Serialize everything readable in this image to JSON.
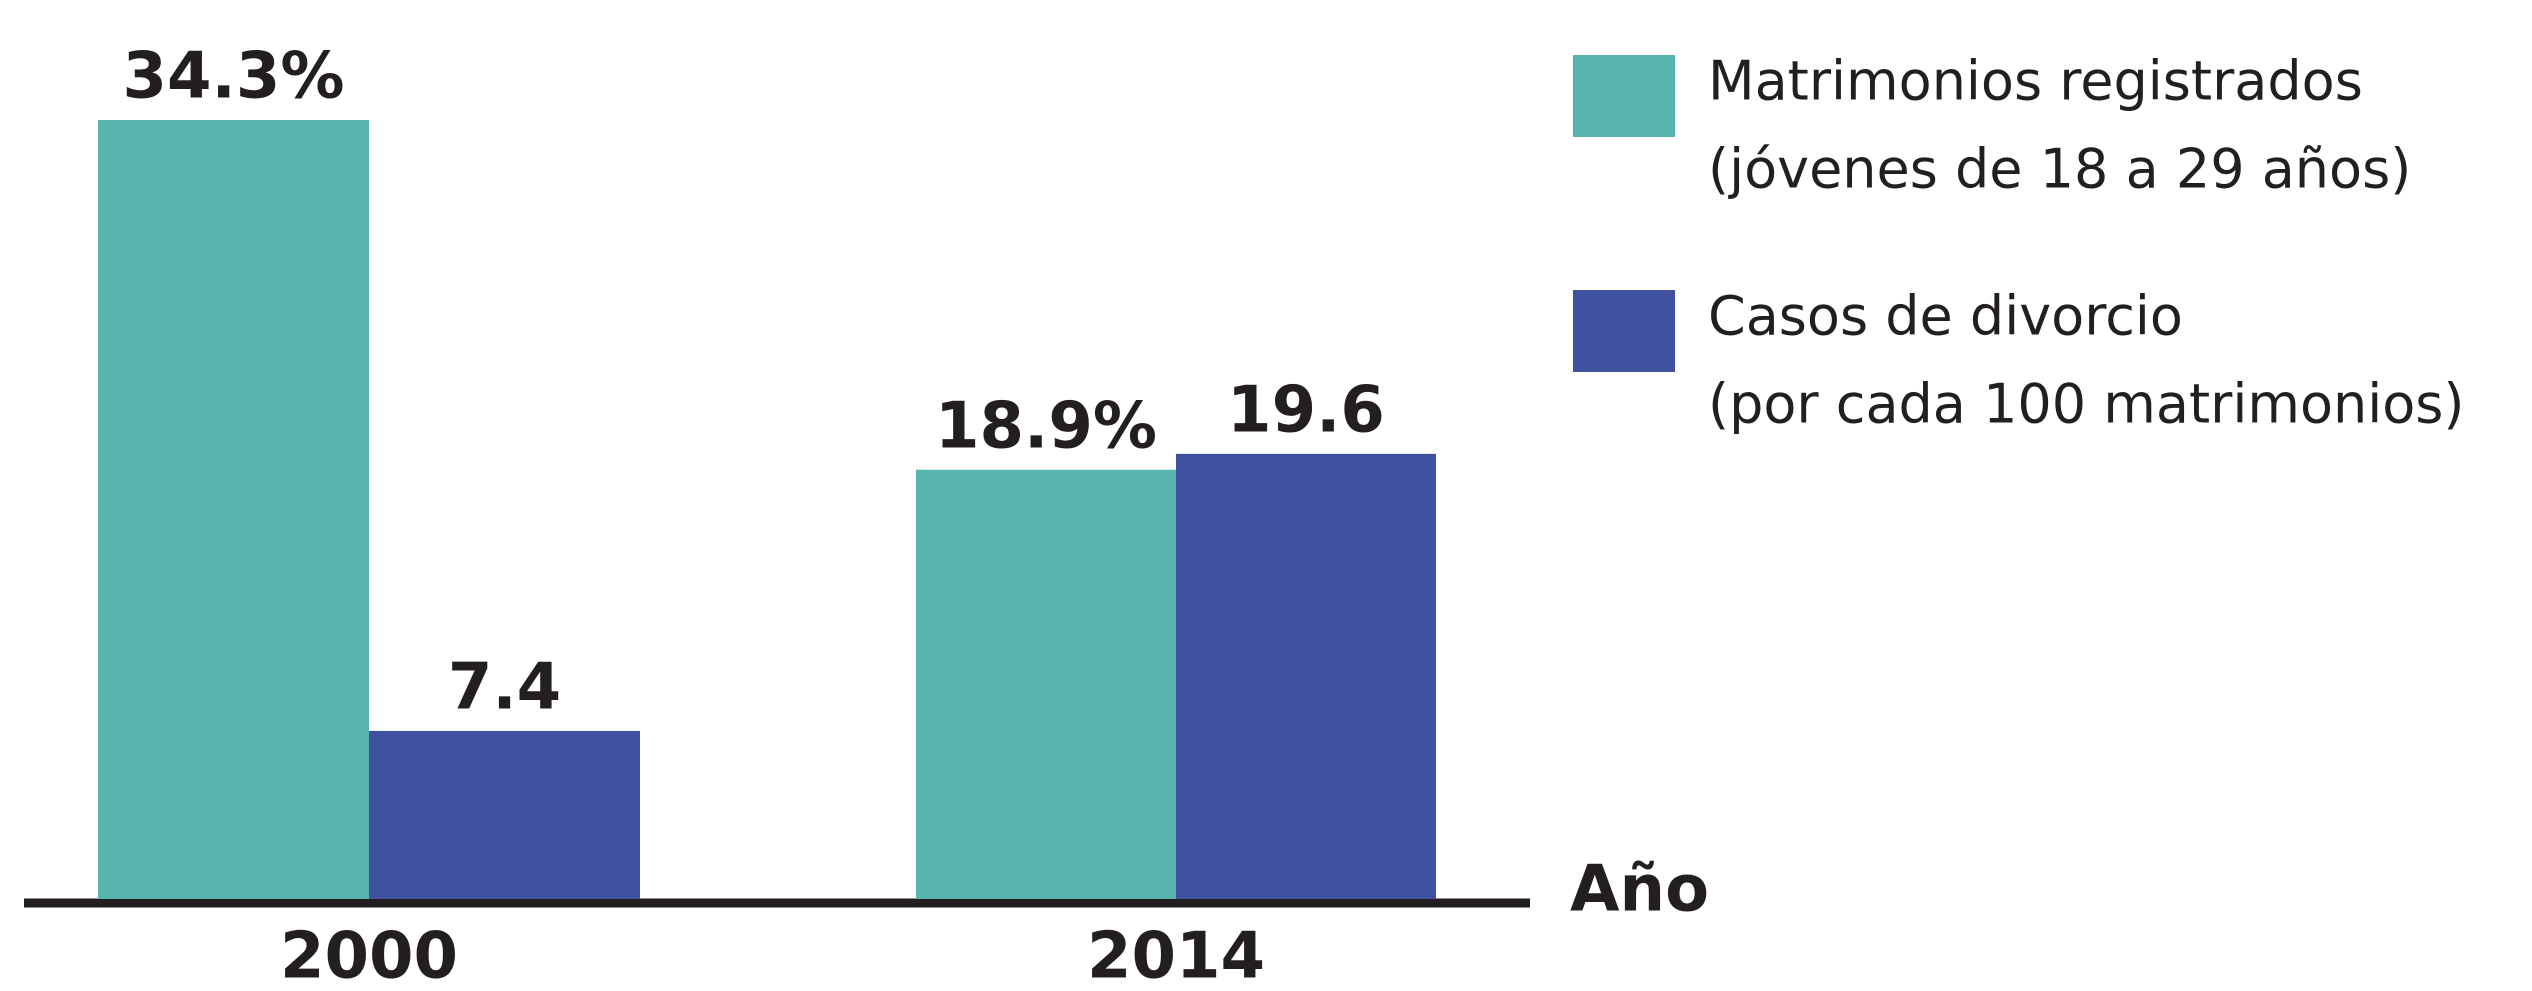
{
  "chart_data": {
    "type": "bar",
    "categories": [
      "2000",
      "2014"
    ],
    "x_label": "Año",
    "series": [
      {
        "name": "Matrimonios registrados",
        "description": "(jóvenes de 18 a 29 años)",
        "color": "#58b5ad",
        "values": [
          34.3,
          18.9
        ],
        "value_labels": [
          "34.3%",
          "18.9%"
        ]
      },
      {
        "name": "Casos de divorcio",
        "description": "(por cada 100 matrimonios)",
        "color": "#4051a0",
        "values": [
          7.4,
          19.6
        ],
        "value_labels": [
          "7.4",
          "19.6"
        ]
      }
    ]
  }
}
